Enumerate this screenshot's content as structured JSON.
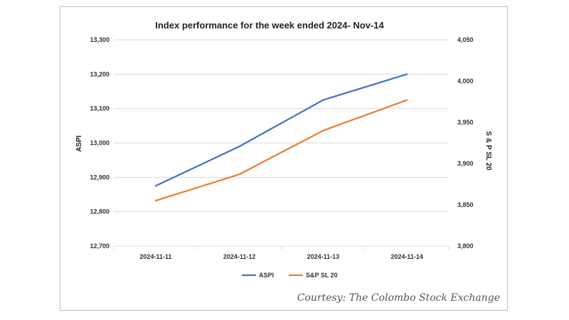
{
  "credit": "Courtesy: The Colombo Stock Exchange",
  "chart_data": {
    "type": "line",
    "title": "Index performance for the week ended 2024- Nov-14",
    "categories": [
      "2024-11-11",
      "2024-11-12",
      "2024-11-13",
      "2024-11-14"
    ],
    "y_left": {
      "label": "ASPI",
      "ylim": [
        12700,
        13300
      ],
      "ticks": [
        12700,
        12800,
        12900,
        13000,
        13100,
        13200,
        13300
      ],
      "tick_labels": [
        "12,700",
        "12,800",
        "12,900",
        "13,000",
        "13,100",
        "13,200",
        "13,300"
      ]
    },
    "y_right": {
      "label": "S & P SL 20",
      "ylim": [
        3800,
        4050
      ],
      "ticks": [
        3800,
        3850,
        3900,
        3950,
        4000,
        4050
      ],
      "tick_labels": [
        "3,800",
        "3,850",
        "3,900",
        "3,950",
        "4,000",
        "4,050"
      ]
    },
    "series": [
      {
        "name": "ASPI",
        "axis": "left",
        "color": "#4472C4",
        "values": [
          12875,
          12990,
          13125,
          13200
        ]
      },
      {
        "name": "S&P SL 20",
        "axis": "right",
        "color": "#ED7D31",
        "values": [
          3855,
          3887,
          3940,
          3977
        ]
      }
    ],
    "grid": "horizontal",
    "legend_position": "bottom"
  }
}
